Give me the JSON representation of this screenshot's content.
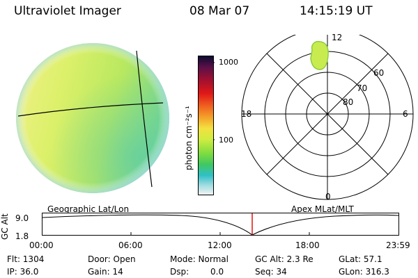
{
  "header": {
    "title": "Ultraviolet Imager",
    "date": "08 Mar 07",
    "time": "14:15:19 UT"
  },
  "colorbar": {
    "unit_label": "photon cm⁻²s⁻¹",
    "tick_1000": "1000",
    "tick_100": "100"
  },
  "polar": {
    "mlt_12": "12",
    "mlt_18": "18",
    "mlt_6": "6",
    "mlt_0": "0",
    "lat_60": "60",
    "lat_70": "70",
    "lat_80": "80"
  },
  "panel_labels": {
    "geo": "Geographic Lat/Lon",
    "apex": "Apex MLat/MLT"
  },
  "alt_plot": {
    "axis_label": "GC Alt",
    "y_top": "9.0",
    "y_bottom": "1.8",
    "x_ticks": [
      "00:00",
      "06:00",
      "12:00",
      "18:00",
      "23:59"
    ]
  },
  "info": {
    "flt": "Flt: 1304",
    "ip": "IP: 36.0",
    "door": "Door: Open",
    "gain": "Gain: 14",
    "mode": "Mode: Normal",
    "dsp_label": "Dsp:",
    "dsp_value": "0.0",
    "gc_alt": "GC Alt: 2.3 Re",
    "seq": "Seq: 34",
    "glat": "GLat: 57.1",
    "glon": "GLon: 316.3"
  }
}
